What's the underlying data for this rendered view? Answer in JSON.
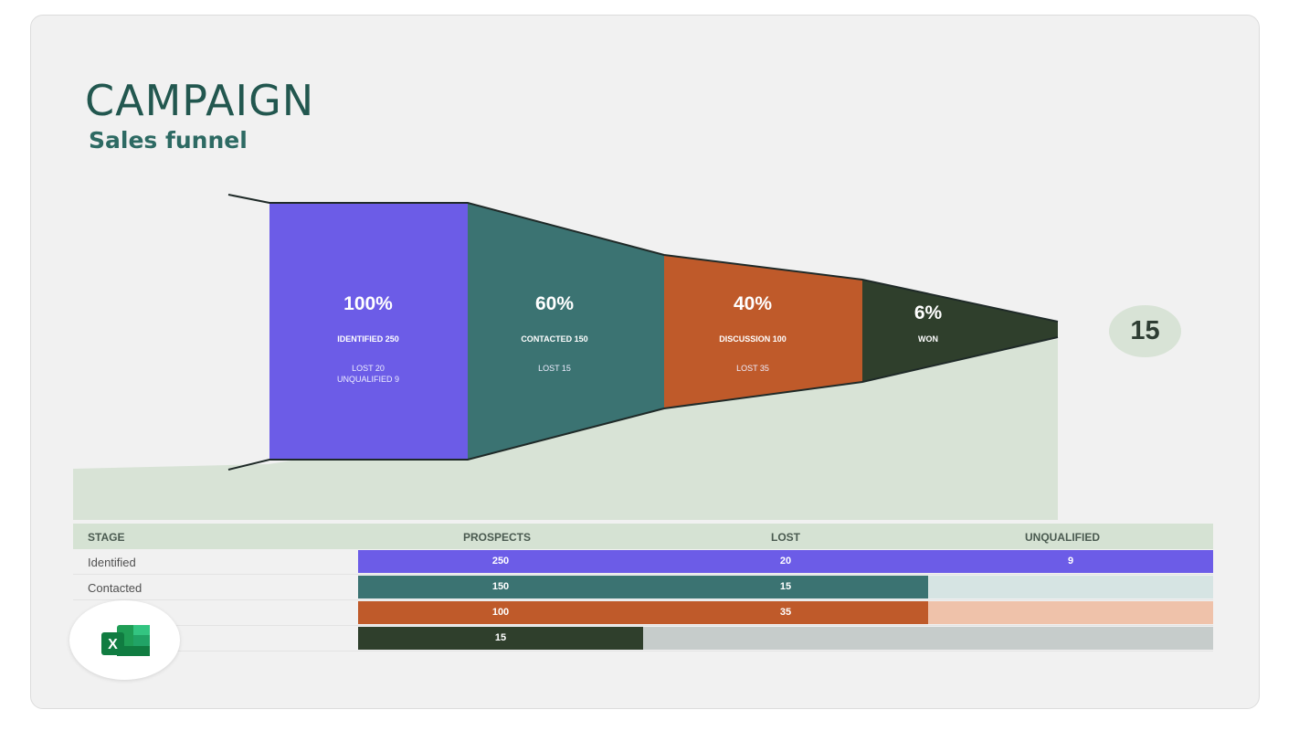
{
  "title": "CAMPAIGN",
  "subtitle": "Sales funnel",
  "won_badge": "15",
  "chart_data": {
    "type": "funnel",
    "stages": [
      {
        "percent": "100%",
        "label": "IDENTIFIED 250",
        "detail": [
          "LOST 20",
          "UNQUALIFIED 9"
        ],
        "value": 250,
        "color": "#6c5ce7"
      },
      {
        "percent": "60%",
        "label": "CONTACTED 150",
        "detail": [
          "LOST 15"
        ],
        "value": 150,
        "color": "#3b7372"
      },
      {
        "percent": "40%",
        "label": "DISCUSSION 100",
        "detail": [
          "LOST 35"
        ],
        "value": 100,
        "color": "#bf5a2a"
      },
      {
        "percent": "6%",
        "label": "WON",
        "detail": [],
        "value": 15,
        "color": "#2f3f2c"
      }
    ],
    "table": {
      "headers": [
        "STAGE",
        "PROSPECTS",
        "LOST",
        "UNQUALIFIED"
      ],
      "rows": [
        {
          "stage": "Identified",
          "prospects": "250",
          "lost": "20",
          "unqualified": "9",
          "color": "#6c5ce7",
          "empty_color": ""
        },
        {
          "stage": "Contacted",
          "prospects": "150",
          "lost": "15",
          "unqualified": "",
          "color": "#3b7372",
          "empty_color": "#d6e4e3"
        },
        {
          "stage": "",
          "prospects": "100",
          "lost": "35",
          "unqualified": "",
          "color": "#bf5a2a",
          "empty_color": "#efc2aa"
        },
        {
          "stage": "",
          "prospects": "15",
          "lost": "",
          "unqualified": "",
          "color": "#2f3f2c",
          "empty_color": "#c6cccb"
        }
      ]
    }
  },
  "app_icon": "excel-icon"
}
